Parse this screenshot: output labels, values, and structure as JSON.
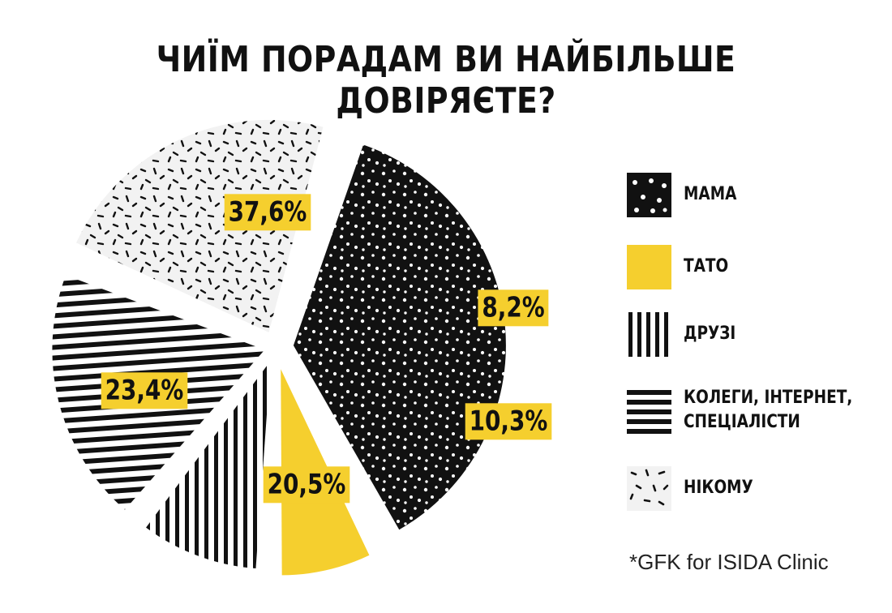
{
  "title": "ЧИЇМ ПОРАДАМ ВИ НАЙБІЛЬШЕ ДОВІРЯЄТЕ?",
  "source": "*GFK for ISIDA Clinic",
  "colors": {
    "black": "#111111",
    "yellow": "#f5cf2e",
    "light": "#f2f2f2"
  },
  "legend": [
    {
      "label_lines": [
        "МАМА"
      ],
      "pattern": "dots",
      "icon": "dots-swatch-icon"
    },
    {
      "label_lines": [
        "ТАТО"
      ],
      "pattern": "solid-yellow",
      "icon": "yellow-swatch-icon"
    },
    {
      "label_lines": [
        "ДРУЗІ"
      ],
      "pattern": "vertical-stripes",
      "icon": "vertical-stripes-swatch-icon"
    },
    {
      "label_lines": [
        "КОЛЕГИ, ІНТЕРНЕТ,",
        "СПЕЦІАЛІСТИ"
      ],
      "pattern": "horizontal-stripes",
      "icon": "horizontal-stripes-swatch-icon"
    },
    {
      "label_lines": [
        "НІКОМУ"
      ],
      "pattern": "dashes",
      "icon": "dashes-swatch-icon"
    }
  ],
  "chart_data": {
    "type": "pie",
    "title": "ЧИЇМ ПОРАДАМ ВИ НАЙБІЛЬШЕ ДОВІРЯЄТЕ?",
    "categories": [
      "МАМА",
      "ТАТО",
      "ДРУЗІ",
      "КОЛЕГИ, ІНТЕРНЕТ, СПЕЦІАЛІСТИ",
      "НІКОМУ"
    ],
    "values": [
      37.6,
      8.2,
      10.3,
      20.5,
      23.4
    ],
    "labels": [
      "37,6%",
      "8,2%",
      "10,3%",
      "20,5%",
      "23,4%"
    ],
    "legend_position": "right"
  }
}
